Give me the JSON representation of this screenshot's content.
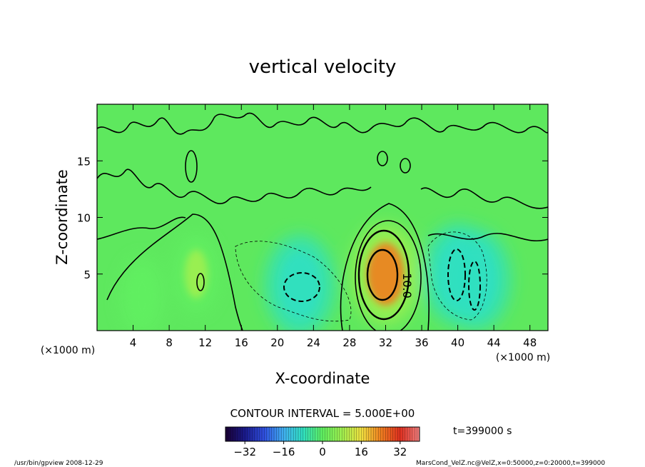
{
  "chart_data": {
    "type": "heatmap",
    "title": "vertical velocity",
    "xlabel": "X-coordinate",
    "ylabel": "Z-coordinate",
    "x_unit_left": "(×1000 m)",
    "x_unit_right": "(×1000 m)",
    "xlim": [
      0,
      50
    ],
    "ylim": [
      0,
      20
    ],
    "x_ticks": [
      4,
      8,
      12,
      16,
      20,
      24,
      28,
      32,
      36,
      40,
      44,
      48
    ],
    "y_ticks": [
      5,
      10,
      15
    ],
    "contour_label": "10.0",
    "contour_interval_text": "CONTOUR INTERVAL = 5.000E+00",
    "time_text": "t=399000 s",
    "colorbar": {
      "min": -40,
      "max": 40,
      "ticks": [
        -32,
        -16,
        0,
        16,
        32
      ],
      "colors": [
        "#1a0033",
        "#1a1a8c",
        "#3050e0",
        "#40b0f0",
        "#30e0c0",
        "#60f060",
        "#a0f050",
        "#f0e040",
        "#f08020",
        "#e03020",
        "#f08080"
      ]
    },
    "field_features": [
      {
        "kind": "updraft",
        "x": 32,
        "z": 5,
        "peak": 20
      },
      {
        "kind": "updraft",
        "x": 11,
        "z": 5,
        "peak": 6
      },
      {
        "kind": "updraft",
        "x": 5,
        "z": 3,
        "peak": 3
      },
      {
        "kind": "downdraft",
        "x": 22.5,
        "z": 4,
        "peak": -10
      },
      {
        "kind": "downdraft",
        "x": 40,
        "z": 5,
        "peak": -12
      },
      {
        "kind": "downdraft",
        "x": 42,
        "z": 4.5,
        "peak": -10
      }
    ],
    "background_color": "#5ee85e",
    "grid": false
  },
  "footer": {
    "left": "/usr/bin/gpview   2008-12-29",
    "right": "MarsCond_VelZ.nc@VelZ,x=0:50000,z=0:20000,t=399000"
  }
}
